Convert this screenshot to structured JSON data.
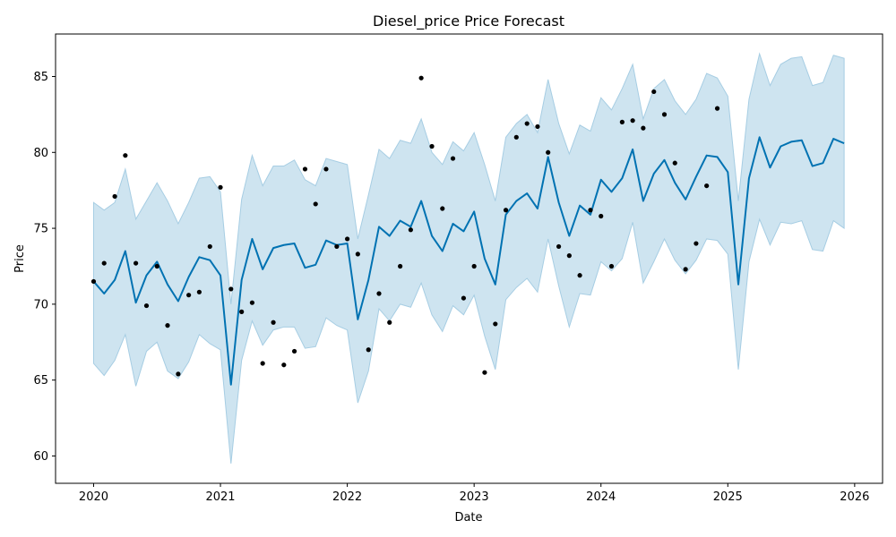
{
  "chart_data": {
    "type": "line",
    "title": "Diesel_price Price Forecast",
    "xlabel": "Date",
    "ylabel": "Price",
    "x_ticks": [
      "2020",
      "2021",
      "2022",
      "2023",
      "2024",
      "2025",
      "2026"
    ],
    "y_ticks": [
      60,
      65,
      70,
      75,
      80,
      85
    ],
    "xlim": [
      2019.7,
      2026.22
    ],
    "ylim": [
      58.2,
      87.8
    ],
    "grid": false,
    "colors": {
      "forecast_line": "#0072b2",
      "interval_fill": "#a6cde3",
      "observed_points": "#000000"
    },
    "series": [
      {
        "type": "line",
        "points": [
          [
            2020.0,
            71.5
          ],
          [
            2020.083,
            70.7
          ],
          [
            2020.167,
            71.6
          ],
          [
            2020.25,
            73.5
          ],
          [
            2020.333,
            70.1
          ],
          [
            2020.417,
            71.9
          ],
          [
            2020.5,
            72.8
          ],
          [
            2020.583,
            71.3
          ],
          [
            2020.667,
            70.2
          ],
          [
            2020.75,
            71.8
          ],
          [
            2020.833,
            73.1
          ],
          [
            2020.917,
            72.9
          ],
          [
            2021.0,
            71.9
          ],
          [
            2021.083,
            64.7
          ],
          [
            2021.167,
            71.6
          ],
          [
            2021.25,
            74.3
          ],
          [
            2021.333,
            72.3
          ],
          [
            2021.417,
            73.7
          ],
          [
            2021.5,
            73.9
          ],
          [
            2021.583,
            74.0
          ],
          [
            2021.667,
            72.4
          ],
          [
            2021.75,
            72.6
          ],
          [
            2021.833,
            74.2
          ],
          [
            2021.917,
            73.9
          ],
          [
            2022.0,
            74.0
          ],
          [
            2022.083,
            69.0
          ],
          [
            2022.167,
            71.6
          ],
          [
            2022.25,
            75.1
          ],
          [
            2022.333,
            74.5
          ],
          [
            2022.417,
            75.5
          ],
          [
            2022.5,
            75.1
          ],
          [
            2022.583,
            76.8
          ],
          [
            2022.667,
            74.5
          ],
          [
            2022.75,
            73.5
          ],
          [
            2022.833,
            75.3
          ],
          [
            2022.917,
            74.8
          ],
          [
            2023.0,
            76.1
          ],
          [
            2023.083,
            73.0
          ],
          [
            2023.167,
            71.3
          ],
          [
            2023.25,
            75.9
          ],
          [
            2023.333,
            76.8
          ],
          [
            2023.417,
            77.3
          ],
          [
            2023.5,
            76.3
          ],
          [
            2023.583,
            79.7
          ],
          [
            2023.667,
            76.7
          ],
          [
            2023.75,
            74.5
          ],
          [
            2023.833,
            76.5
          ],
          [
            2023.917,
            75.9
          ],
          [
            2024.0,
            78.2
          ],
          [
            2024.083,
            77.4
          ],
          [
            2024.167,
            78.3
          ],
          [
            2024.25,
            80.2
          ],
          [
            2024.333,
            76.8
          ],
          [
            2024.417,
            78.6
          ],
          [
            2024.5,
            79.5
          ],
          [
            2024.583,
            78.0
          ],
          [
            2024.667,
            76.9
          ],
          [
            2024.75,
            78.4
          ],
          [
            2024.833,
            79.8
          ],
          [
            2024.917,
            79.7
          ],
          [
            2025.0,
            78.7
          ],
          [
            2025.083,
            71.3
          ],
          [
            2025.167,
            78.3
          ],
          [
            2025.25,
            81.0
          ],
          [
            2025.333,
            79.0
          ],
          [
            2025.417,
            80.4
          ],
          [
            2025.5,
            80.7
          ],
          [
            2025.583,
            80.8
          ],
          [
            2025.667,
            79.1
          ],
          [
            2025.75,
            79.3
          ],
          [
            2025.833,
            80.9
          ],
          [
            2025.917,
            80.6
          ]
        ]
      },
      {
        "type": "band",
        "upper": [
          [
            2020.0,
            76.7
          ],
          [
            2020.083,
            76.2
          ],
          [
            2020.167,
            76.7
          ],
          [
            2020.25,
            78.9
          ],
          [
            2020.333,
            75.6
          ],
          [
            2020.417,
            76.8
          ],
          [
            2020.5,
            78.0
          ],
          [
            2020.583,
            76.8
          ],
          [
            2020.667,
            75.3
          ],
          [
            2020.75,
            76.7
          ],
          [
            2020.833,
            78.3
          ],
          [
            2020.917,
            78.4
          ],
          [
            2021.0,
            77.4
          ],
          [
            2021.083,
            70.0
          ],
          [
            2021.167,
            76.9
          ],
          [
            2021.25,
            79.8
          ],
          [
            2021.333,
            77.8
          ],
          [
            2021.417,
            79.1
          ],
          [
            2021.5,
            79.1
          ],
          [
            2021.583,
            79.5
          ],
          [
            2021.667,
            78.2
          ],
          [
            2021.75,
            77.8
          ],
          [
            2021.833,
            79.6
          ],
          [
            2021.917,
            79.4
          ],
          [
            2022.0,
            79.2
          ],
          [
            2022.083,
            74.3
          ],
          [
            2022.167,
            77.2
          ],
          [
            2022.25,
            80.2
          ],
          [
            2022.333,
            79.6
          ],
          [
            2022.417,
            80.8
          ],
          [
            2022.5,
            80.6
          ],
          [
            2022.583,
            82.2
          ],
          [
            2022.667,
            80.0
          ],
          [
            2022.75,
            79.2
          ],
          [
            2022.833,
            80.7
          ],
          [
            2022.917,
            80.1
          ],
          [
            2023.0,
            81.3
          ],
          [
            2023.083,
            79.2
          ],
          [
            2023.167,
            76.8
          ],
          [
            2023.25,
            81.0
          ],
          [
            2023.333,
            81.9
          ],
          [
            2023.417,
            82.5
          ],
          [
            2023.5,
            81.3
          ],
          [
            2023.583,
            84.8
          ],
          [
            2023.667,
            81.9
          ],
          [
            2023.75,
            79.9
          ],
          [
            2023.833,
            81.8
          ],
          [
            2023.917,
            81.4
          ],
          [
            2024.0,
            83.6
          ],
          [
            2024.083,
            82.8
          ],
          [
            2024.167,
            84.2
          ],
          [
            2024.25,
            85.8
          ],
          [
            2024.333,
            82.2
          ],
          [
            2024.417,
            84.2
          ],
          [
            2024.5,
            84.8
          ],
          [
            2024.583,
            83.4
          ],
          [
            2024.667,
            82.5
          ],
          [
            2024.75,
            83.5
          ],
          [
            2024.833,
            85.2
          ],
          [
            2024.917,
            84.9
          ],
          [
            2025.0,
            83.7
          ],
          [
            2025.083,
            76.8
          ],
          [
            2025.167,
            83.5
          ],
          [
            2025.25,
            86.5
          ],
          [
            2025.333,
            84.4
          ],
          [
            2025.417,
            85.8
          ],
          [
            2025.5,
            86.2
          ],
          [
            2025.583,
            86.3
          ],
          [
            2025.667,
            84.4
          ],
          [
            2025.75,
            84.6
          ],
          [
            2025.833,
            86.4
          ],
          [
            2025.917,
            86.2
          ]
        ],
        "lower": [
          [
            2020.0,
            66.1
          ],
          [
            2020.083,
            65.3
          ],
          [
            2020.167,
            66.3
          ],
          [
            2020.25,
            68.0
          ],
          [
            2020.333,
            64.6
          ],
          [
            2020.417,
            66.9
          ],
          [
            2020.5,
            67.5
          ],
          [
            2020.583,
            65.6
          ],
          [
            2020.667,
            65.1
          ],
          [
            2020.75,
            66.2
          ],
          [
            2020.833,
            68.0
          ],
          [
            2020.917,
            67.4
          ],
          [
            2021.0,
            67.0
          ],
          [
            2021.083,
            59.5
          ],
          [
            2021.167,
            66.3
          ],
          [
            2021.25,
            68.9
          ],
          [
            2021.333,
            67.3
          ],
          [
            2021.417,
            68.3
          ],
          [
            2021.5,
            68.5
          ],
          [
            2021.583,
            68.5
          ],
          [
            2021.667,
            67.1
          ],
          [
            2021.75,
            67.2
          ],
          [
            2021.833,
            69.1
          ],
          [
            2021.917,
            68.6
          ],
          [
            2022.0,
            68.3
          ],
          [
            2022.083,
            63.5
          ],
          [
            2022.167,
            65.6
          ],
          [
            2022.25,
            69.7
          ],
          [
            2022.333,
            68.9
          ],
          [
            2022.417,
            70.0
          ],
          [
            2022.5,
            69.8
          ],
          [
            2022.583,
            71.4
          ],
          [
            2022.667,
            69.3
          ],
          [
            2022.75,
            68.2
          ],
          [
            2022.833,
            69.9
          ],
          [
            2022.917,
            69.3
          ],
          [
            2023.0,
            70.6
          ],
          [
            2023.083,
            67.9
          ],
          [
            2023.167,
            65.7
          ],
          [
            2023.25,
            70.3
          ],
          [
            2023.333,
            71.1
          ],
          [
            2023.417,
            71.7
          ],
          [
            2023.5,
            70.8
          ],
          [
            2023.583,
            74.3
          ],
          [
            2023.667,
            71.2
          ],
          [
            2023.75,
            68.5
          ],
          [
            2023.833,
            70.7
          ],
          [
            2023.917,
            70.6
          ],
          [
            2024.0,
            72.8
          ],
          [
            2024.083,
            72.2
          ],
          [
            2024.167,
            73.0
          ],
          [
            2024.25,
            75.4
          ],
          [
            2024.333,
            71.4
          ],
          [
            2024.417,
            72.8
          ],
          [
            2024.5,
            74.3
          ],
          [
            2024.583,
            72.9
          ],
          [
            2024.667,
            72.0
          ],
          [
            2024.75,
            72.9
          ],
          [
            2024.833,
            74.3
          ],
          [
            2024.917,
            74.2
          ],
          [
            2025.0,
            73.3
          ],
          [
            2025.083,
            65.7
          ],
          [
            2025.167,
            72.8
          ],
          [
            2025.25,
            75.6
          ],
          [
            2025.333,
            73.9
          ],
          [
            2025.417,
            75.4
          ],
          [
            2025.5,
            75.3
          ],
          [
            2025.583,
            75.5
          ],
          [
            2025.667,
            73.6
          ],
          [
            2025.75,
            73.5
          ],
          [
            2025.833,
            75.5
          ],
          [
            2025.917,
            75.0
          ]
        ]
      },
      {
        "type": "scatter",
        "points": [
          [
            2020.0,
            71.5
          ],
          [
            2020.083,
            72.7
          ],
          [
            2020.167,
            77.1
          ],
          [
            2020.25,
            79.8
          ],
          [
            2020.333,
            72.7
          ],
          [
            2020.417,
            69.9
          ],
          [
            2020.5,
            72.5
          ],
          [
            2020.583,
            68.6
          ],
          [
            2020.667,
            65.4
          ],
          [
            2020.75,
            70.6
          ],
          [
            2020.833,
            70.8
          ],
          [
            2020.917,
            73.8
          ],
          [
            2021.0,
            77.7
          ],
          [
            2021.083,
            71.0
          ],
          [
            2021.167,
            69.5
          ],
          [
            2021.25,
            70.1
          ],
          [
            2021.333,
            66.1
          ],
          [
            2021.417,
            68.8
          ],
          [
            2021.5,
            66.0
          ],
          [
            2021.583,
            66.9
          ],
          [
            2021.667,
            78.9
          ],
          [
            2021.75,
            76.6
          ],
          [
            2021.833,
            78.9
          ],
          [
            2021.917,
            73.8
          ],
          [
            2022.0,
            74.3
          ],
          [
            2022.083,
            73.3
          ],
          [
            2022.167,
            67.0
          ],
          [
            2022.25,
            70.7
          ],
          [
            2022.333,
            68.8
          ],
          [
            2022.417,
            72.5
          ],
          [
            2022.5,
            74.9
          ],
          [
            2022.583,
            84.9
          ],
          [
            2022.667,
            80.4
          ],
          [
            2022.75,
            76.3
          ],
          [
            2022.833,
            79.6
          ],
          [
            2022.917,
            70.4
          ],
          [
            2023.0,
            72.5
          ],
          [
            2023.083,
            65.5
          ],
          [
            2023.167,
            68.7
          ],
          [
            2023.25,
            76.2
          ],
          [
            2023.333,
            81.0
          ],
          [
            2023.417,
            81.9
          ],
          [
            2023.5,
            81.7
          ],
          [
            2023.583,
            80.0
          ],
          [
            2023.667,
            73.8
          ],
          [
            2023.75,
            73.2
          ],
          [
            2023.833,
            71.9
          ],
          [
            2023.917,
            76.2
          ],
          [
            2024.0,
            75.8
          ],
          [
            2024.083,
            72.5
          ],
          [
            2024.167,
            82.0
          ],
          [
            2024.25,
            82.1
          ],
          [
            2024.333,
            81.6
          ],
          [
            2024.417,
            84.0
          ],
          [
            2024.5,
            82.5
          ],
          [
            2024.583,
            79.3
          ],
          [
            2024.667,
            72.3
          ],
          [
            2024.75,
            74.0
          ],
          [
            2024.833,
            77.8
          ],
          [
            2024.917,
            82.9
          ]
        ]
      }
    ]
  }
}
